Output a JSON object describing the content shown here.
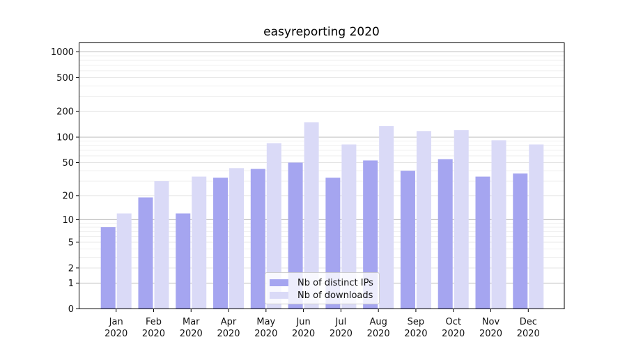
{
  "figure": {
    "background": "#ffffff",
    "axis_color": "#000000"
  },
  "chart_data": {
    "type": "bar",
    "title": "easyreporting 2020",
    "categories": [
      "Jan 2020",
      "Feb 2020",
      "Mar 2020",
      "Apr 2020",
      "May 2020",
      "Jun 2020",
      "Jul 2020",
      "Aug 2020",
      "Sep 2020",
      "Oct 2020",
      "Nov 2020",
      "Dec 2020"
    ],
    "series": [
      {
        "name": "Nb of distinct IPs",
        "color": "#a5a5f0",
        "values": [
          8,
          19,
          12,
          33,
          42,
          50,
          33,
          53,
          40,
          55,
          34,
          37
        ]
      },
      {
        "name": "Nb of downloads",
        "color": "#dadaf7",
        "values": [
          12,
          30,
          34,
          43,
          85,
          150,
          82,
          135,
          118,
          121,
          92,
          82
        ]
      }
    ],
    "yscale": "log1p",
    "yticks": [
      0,
      1,
      2,
      5,
      10,
      20,
      50,
      100,
      200,
      500,
      1000
    ],
    "ylim": [
      0,
      1276
    ],
    "grid": true,
    "legend_position": "lower center",
    "gridline_colors": {
      "power_of_ten": "#b8b8b8",
      "labeled": "#e3e3e3",
      "minor": "#efefef"
    }
  }
}
